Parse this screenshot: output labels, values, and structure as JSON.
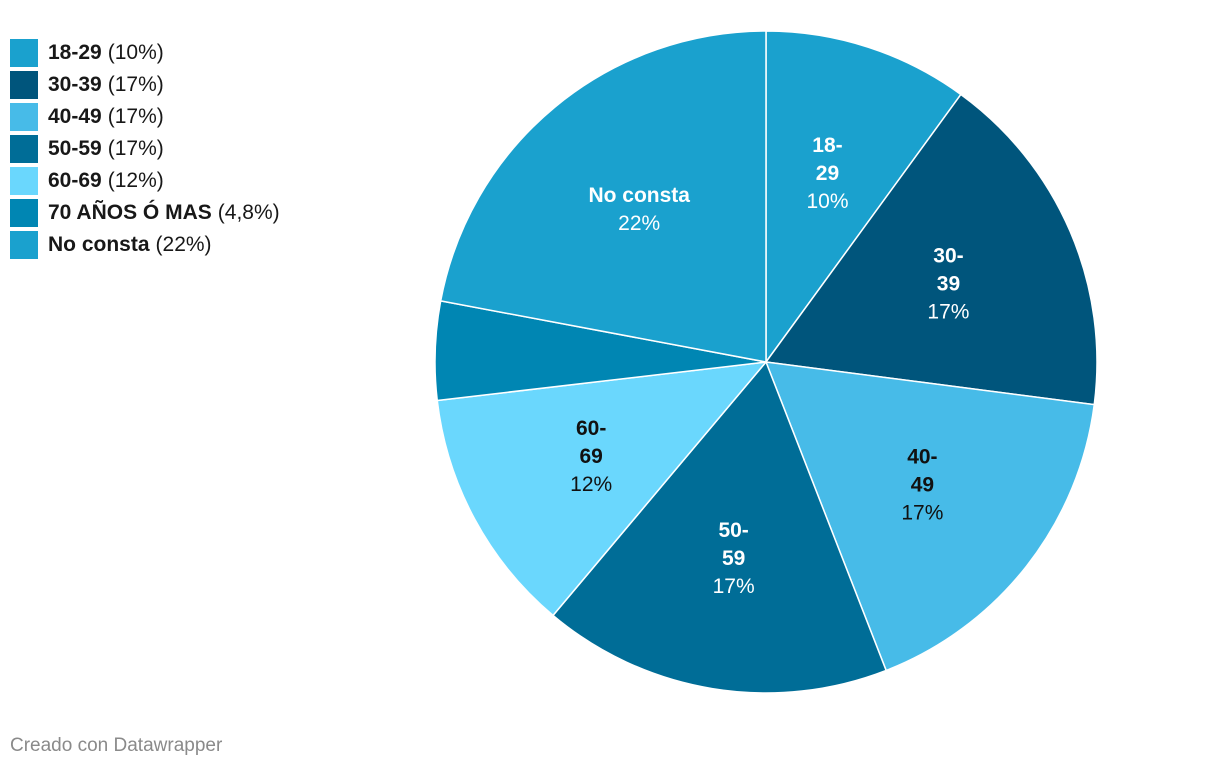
{
  "chart_data": {
    "type": "pie",
    "title": "",
    "legend_position": "top-left",
    "slices": [
      {
        "name": "18-29",
        "value": 10,
        "percent_label": "10%",
        "legend_value": "(10%)",
        "label_lines": [
          "18-",
          "29"
        ],
        "show_label": true,
        "color": "#1aa1ce",
        "text_color": "#ffffff"
      },
      {
        "name": "30-39",
        "value": 17,
        "percent_label": "17%",
        "legend_value": "(17%)",
        "label_lines": [
          "30-",
          "39"
        ],
        "show_label": true,
        "color": "#00557c",
        "text_color": "#ffffff"
      },
      {
        "name": "40-49",
        "value": 17,
        "percent_label": "17%",
        "legend_value": "(17%)",
        "label_lines": [
          "40-",
          "49"
        ],
        "show_label": true,
        "color": "#47bbe8",
        "text_color": "#111111"
      },
      {
        "name": "50-59",
        "value": 17,
        "percent_label": "17%",
        "legend_value": "(17%)",
        "label_lines": [
          "50-",
          "59"
        ],
        "show_label": true,
        "color": "#006d97",
        "text_color": "#ffffff"
      },
      {
        "name": "60-69",
        "value": 12,
        "percent_label": "12%",
        "legend_value": "(12%)",
        "label_lines": [
          "60-",
          "69"
        ],
        "show_label": true,
        "color": "#6ad7fd",
        "text_color": "#111111"
      },
      {
        "name": "70 AÑOS Ó MAS",
        "value": 4.8,
        "percent_label": "4,8%",
        "legend_value": "(4,8%)",
        "label_lines": [],
        "show_label": false,
        "color": "#0086b3",
        "text_color": "#ffffff"
      },
      {
        "name": "No consta",
        "value": 22,
        "percent_label": "22%",
        "legend_value": "(22%)",
        "label_lines": [
          "No consta"
        ],
        "show_label": true,
        "color": "#1aa1ce",
        "text_color": "#ffffff"
      }
    ]
  },
  "footer": {
    "credit": "Creado con Datawrapper"
  }
}
